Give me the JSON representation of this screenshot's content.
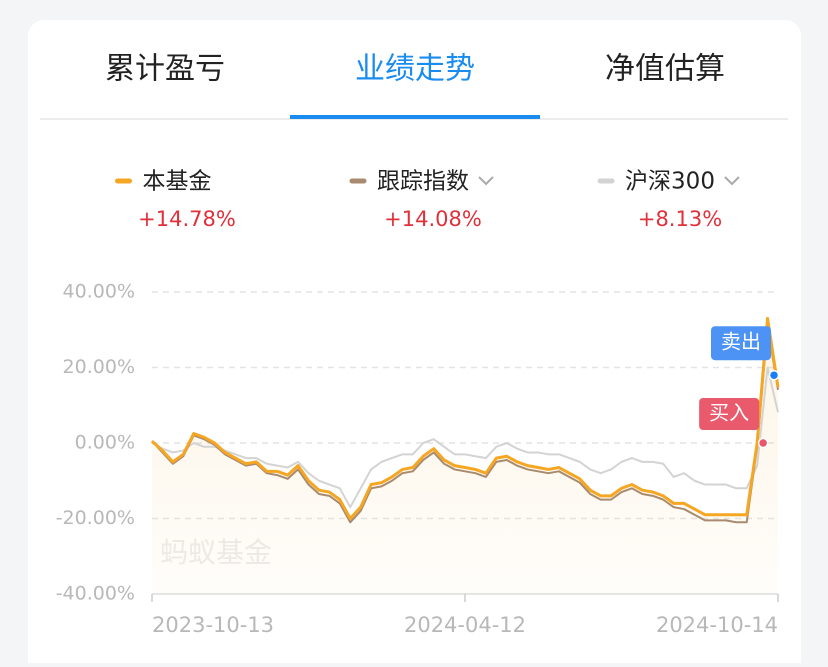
{
  "tabs": {
    "items": [
      "累计盈亏",
      "业绩走势",
      "净值估算"
    ],
    "active": 1
  },
  "chart_data": {
    "type": "line",
    "categories": [
      "2023-10-13",
      null,
      null,
      null,
      null,
      null,
      null,
      null,
      null,
      null,
      null,
      null,
      null,
      null,
      null,
      null,
      null,
      null,
      null,
      null,
      null,
      null,
      null,
      null,
      null,
      null,
      null,
      null,
      null,
      null,
      "2024-04-12",
      null,
      null,
      null,
      null,
      null,
      null,
      null,
      null,
      null,
      null,
      null,
      null,
      null,
      null,
      null,
      null,
      null,
      null,
      null,
      null,
      null,
      null,
      null,
      null,
      null,
      null,
      null,
      null,
      null,
      "2024-10-14"
    ],
    "series": [
      {
        "name": "本基金",
        "color": "#f5a623",
        "change": {
          "value": 14.78,
          "label": "+14.78%"
        },
        "values": [
          0.5,
          -2,
          -5,
          -3,
          2.5,
          1.5,
          0,
          -2.5,
          -4,
          -5.5,
          -5,
          -7.5,
          -7.5,
          -8.5,
          -6,
          -10,
          -12.5,
          -13,
          -15,
          -20,
          -17,
          -11,
          -10.5,
          -9,
          -7,
          -6.5,
          -3.5,
          -1.5,
          -4.5,
          -6,
          -6.5,
          -7,
          -8,
          -4,
          -3.5,
          -5,
          -6,
          -6.5,
          -7,
          -6.5,
          -8,
          -9.5,
          -12.5,
          -14,
          -14,
          -12,
          -11,
          -12.5,
          -13,
          -14,
          -16,
          -16,
          -17.5,
          -19,
          -19,
          -19,
          -19,
          -19,
          0,
          33,
          14.78
        ]
      },
      {
        "name": "跟踪指数",
        "color": "#a88a6e",
        "change": {
          "value": 14.08,
          "label": "+14.08%"
        },
        "values": [
          0.5,
          -2.5,
          -5.5,
          -3.5,
          2,
          1,
          -0.5,
          -3,
          -4.5,
          -6,
          -5.5,
          -8,
          -8.5,
          -9.5,
          -7,
          -11,
          -13.5,
          -14,
          -16,
          -21,
          -18,
          -12,
          -11.5,
          -10,
          -8,
          -7.5,
          -4.5,
          -2.5,
          -5.5,
          -7,
          -7.5,
          -8,
          -9,
          -5,
          -4.5,
          -6,
          -7,
          -7.5,
          -8,
          -7.5,
          -9,
          -10.5,
          -13.5,
          -15,
          -15,
          -13,
          -12,
          -13.5,
          -14,
          -15,
          -17,
          -17.5,
          -19,
          -20.5,
          -20.5,
          -20.5,
          -21,
          -21,
          -1,
          31,
          14.08
        ]
      },
      {
        "name": "沪深300",
        "color": "#d3d3d3",
        "change": {
          "value": 8.13,
          "label": "+8.13%"
        },
        "values": [
          0,
          -1.5,
          -2.5,
          -2,
          0,
          -1,
          -1,
          -2,
          -3,
          -4,
          -4,
          -5.5,
          -6,
          -6.5,
          -5,
          -8,
          -10,
          -11,
          -12,
          -17,
          -12,
          -7,
          -5,
          -4,
          -3,
          -3,
          0,
          1,
          -1,
          -3,
          -3,
          -3.5,
          -4,
          -1,
          0,
          -1.5,
          -2.5,
          -2.5,
          -3,
          -3,
          -4,
          -5,
          -7,
          -8,
          -7,
          -5,
          -4,
          -5,
          -5,
          -5.5,
          -9,
          -8,
          -10,
          -11,
          -11,
          -11,
          -12,
          -12,
          -6,
          20,
          8.13
        ]
      }
    ],
    "ylim": [
      -40,
      40
    ],
    "yticks": [
      {
        "value": -40,
        "label": "-40.00%"
      },
      {
        "value": -20,
        "label": "-20.00%"
      },
      {
        "value": 0,
        "label": "0.00%"
      },
      {
        "value": 20,
        "label": "20.00%"
      },
      {
        "value": 40,
        "label": "40.00%"
      }
    ],
    "grid": true,
    "watermark": "蚂蚁基金",
    "buy_label": "买入",
    "sell_label": "卖出"
  }
}
